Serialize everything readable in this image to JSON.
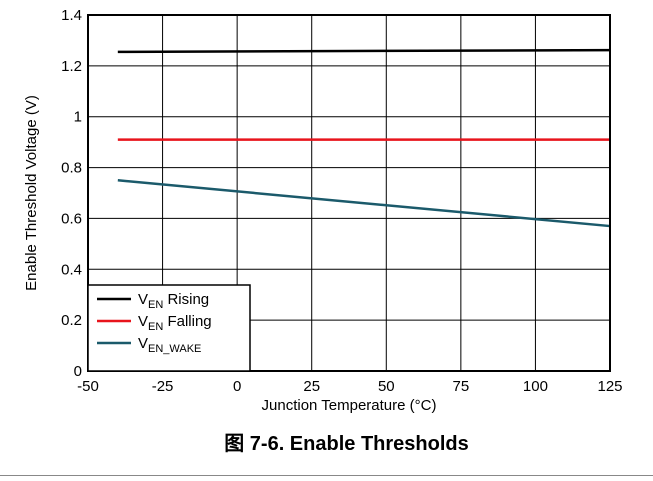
{
  "caption": "图 7-6. Enable Thresholds",
  "chart_data": {
    "type": "line",
    "title": "",
    "xlabel": "Junction Temperature (°C)",
    "ylabel": "Enable Threshold Voltage (V)",
    "xlim": [
      -50,
      125
    ],
    "ylim": [
      0,
      1.4
    ],
    "x_ticks": [
      -50,
      -25,
      0,
      25,
      50,
      75,
      100,
      125
    ],
    "y_ticks": [
      0,
      0.2,
      0.4,
      0.6,
      0.8,
      1,
      1.2,
      1.4
    ],
    "x_tick_labels": [
      "-50",
      "-25",
      "0",
      "25",
      "50",
      "75",
      "100",
      "125"
    ],
    "y_tick_labels": [
      "0",
      "0.2",
      "0.4",
      "0.6",
      "0.8",
      "1",
      "1.2",
      "1.4"
    ],
    "grid": true,
    "legend_position": "bottom-left",
    "series": [
      {
        "name_main": "V",
        "name_sub": "EN",
        "name_rest": " Rising",
        "color": "#000000",
        "x": [
          -40,
          125
        ],
        "y": [
          1.255,
          1.262
        ]
      },
      {
        "name_main": "V",
        "name_sub": "EN",
        "name_rest": " Falling",
        "color": "#e8141c",
        "x": [
          -40,
          125
        ],
        "y": [
          0.91,
          0.91
        ]
      },
      {
        "name_main": "V",
        "name_sub": "EN_WAKE",
        "name_rest": "",
        "color": "#1b5a6b",
        "x": [
          -40,
          125
        ],
        "y": [
          0.75,
          0.57
        ]
      }
    ]
  }
}
